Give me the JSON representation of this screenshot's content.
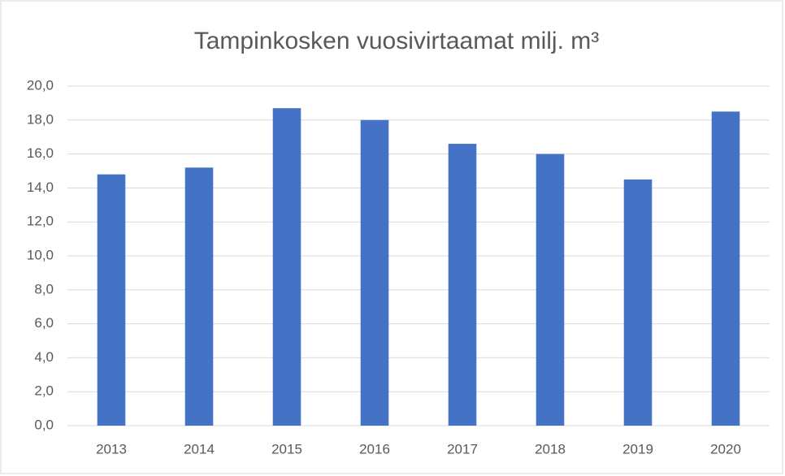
{
  "chart_data": {
    "type": "bar",
    "title": "Tampinkosken vuosivirtaamat milj. m³",
    "categories": [
      "2013",
      "2014",
      "2015",
      "2016",
      "2017",
      "2018",
      "2019",
      "2020"
    ],
    "values": [
      14.8,
      15.2,
      18.7,
      18.0,
      16.6,
      16.0,
      14.5,
      18.5
    ],
    "color": "#4472c4",
    "ylim": [
      0,
      20
    ],
    "yticks": [
      {
        "value": 0,
        "label": "0,0"
      },
      {
        "value": 2,
        "label": "2,0"
      },
      {
        "value": 4,
        "label": "4,0"
      },
      {
        "value": 6,
        "label": "6,0"
      },
      {
        "value": 8,
        "label": "8,0"
      },
      {
        "value": 10,
        "label": "10,0"
      },
      {
        "value": 12,
        "label": "12,0"
      },
      {
        "value": 14,
        "label": "14,0"
      },
      {
        "value": 16,
        "label": "16,0"
      },
      {
        "value": 18,
        "label": "18,0"
      },
      {
        "value": 20,
        "label": "20,0"
      }
    ],
    "grid": true
  }
}
